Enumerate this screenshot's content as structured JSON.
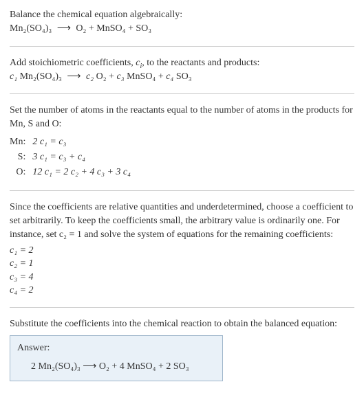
{
  "intro": {
    "line1": "Balance the chemical equation algebraically:",
    "reaction_lhs": "Mn₂(SO₄)₃",
    "reaction_arrow": "⟶",
    "reaction_rhs": "O₂ + MnSO₄ + SO₃"
  },
  "stoich": {
    "text_a": "Add stoichiometric coefficients, ",
    "ci": "c",
    "ci_sub": "i",
    "text_b": ", to the reactants and products:",
    "lhs_coef": "c₁",
    "lhs_species": "Mn₂(SO₄)₃",
    "arrow": "⟶",
    "r1_coef": "c₂",
    "r1_species": "O₂",
    "r2_coef": "c₃",
    "r2_species": "MnSO₄",
    "r3_coef": "c₄",
    "r3_species": "SO₃"
  },
  "atoms": {
    "text": "Set the number of atoms in the reactants equal to the number of atoms in the products for Mn, S and O:",
    "rows": [
      {
        "el": "Mn:",
        "eq": "2 c₁ = c₃"
      },
      {
        "el": "S:",
        "eq": "3 c₁ = c₃ + c₄"
      },
      {
        "el": "O:",
        "eq": "12 c₁ = 2 c₂ + 4 c₃ + 3 c₄"
      }
    ]
  },
  "solve": {
    "text": "Since the coefficients are relative quantities and underdetermined, choose a coefficient to set arbitrarily. To keep the coefficients small, the arbitrary value is ordinarily one. For instance, set c₂ = 1 and solve the system of equations for the remaining coefficients:",
    "coefs": [
      "c₁ = 2",
      "c₂ = 1",
      "c₃ = 4",
      "c₄ = 2"
    ]
  },
  "subst": {
    "text": "Substitute the coefficients into the chemical reaction to obtain the balanced equation:"
  },
  "answer": {
    "label": "Answer:",
    "eqn": "2 Mn₂(SO₄)₃  ⟶  O₂ + 4 MnSO₄ + 2 SO₃"
  }
}
